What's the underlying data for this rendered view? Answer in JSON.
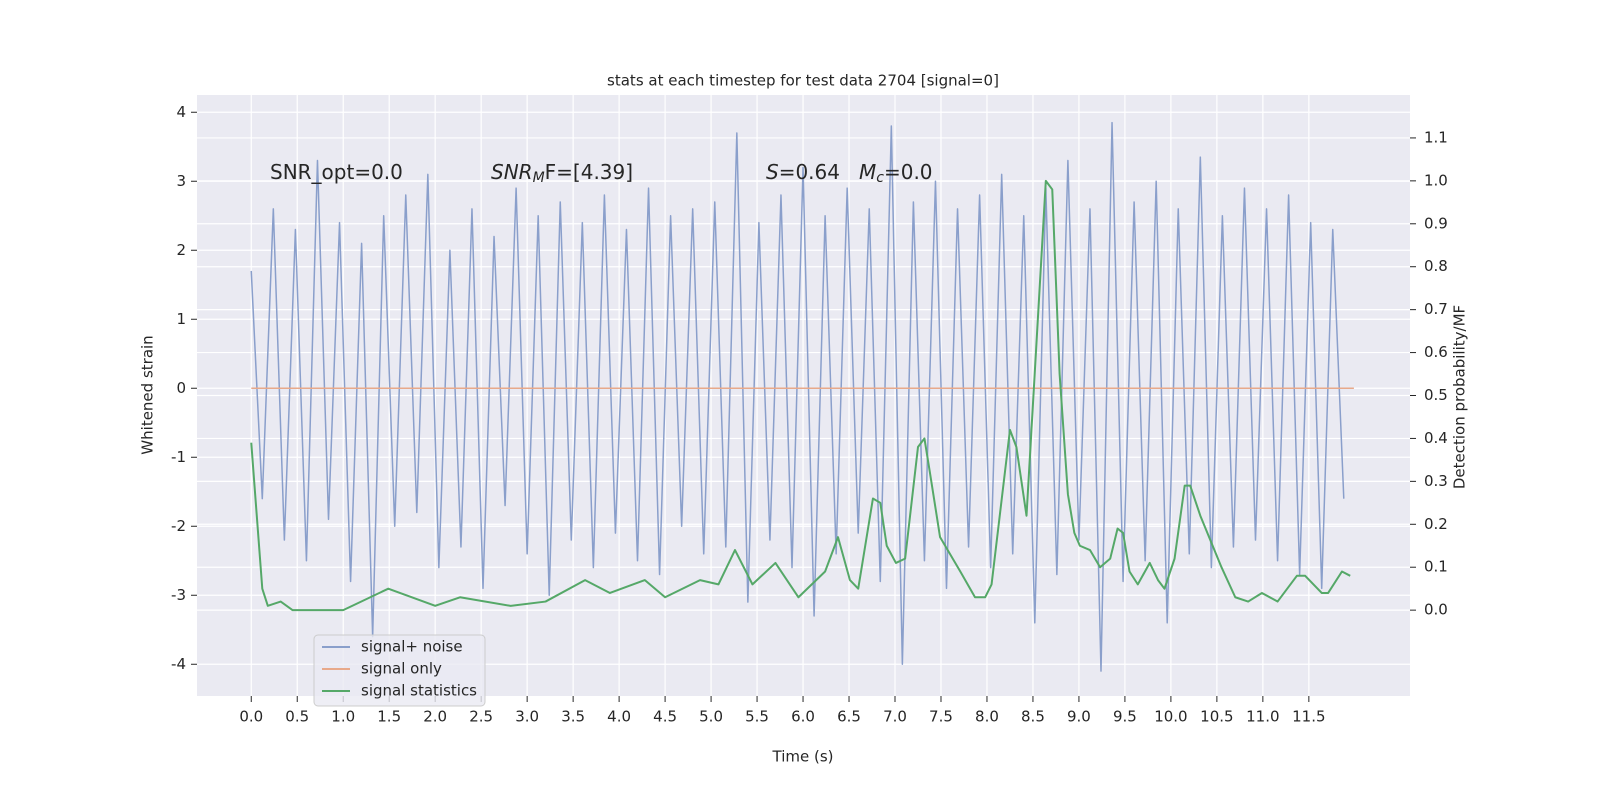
{
  "chart_data": {
    "type": "line",
    "title": "stats at each timestep for test data 2704 [signal=0]",
    "xlabel": "Time (s)",
    "ylabel": "Whitened strain",
    "y2label": "Detection probability/MF",
    "annotations": [
      [
        "SNR_opt=0.0"
      ],
      [
        "SNR",
        "M",
        "F=[4.39]"
      ],
      [
        "S",
        "=0.64"
      ],
      [
        "M",
        "c",
        "=0.0"
      ]
    ],
    "xlim": [
      -0.59,
      12.6
    ],
    "ylim": [
      -4.46,
      4.25
    ],
    "y2lim": [
      -0.2,
      1.2
    ],
    "xticks": [
      {
        "value": 0,
        "label": "0.0"
      },
      {
        "value": 0.5,
        "label": "0.5"
      },
      {
        "value": 1,
        "label": "1.0"
      },
      {
        "value": 1.5,
        "label": "1.5"
      },
      {
        "value": 2,
        "label": "2.0"
      },
      {
        "value": 2.5,
        "label": "2.5"
      },
      {
        "value": 3,
        "label": "3.0"
      },
      {
        "value": 3.5,
        "label": "3.5"
      },
      {
        "value": 4,
        "label": "4.0"
      },
      {
        "value": 4.5,
        "label": "4.5"
      },
      {
        "value": 5,
        "label": "5.0"
      },
      {
        "value": 5.5,
        "label": "5.5"
      },
      {
        "value": 6,
        "label": "6.0"
      },
      {
        "value": 6.5,
        "label": "6.5"
      },
      {
        "value": 7,
        "label": "7.0"
      },
      {
        "value": 7.5,
        "label": "7.5"
      },
      {
        "value": 8,
        "label": "8.0"
      },
      {
        "value": 8.5,
        "label": "8.5"
      },
      {
        "value": 9,
        "label": "9.0"
      },
      {
        "value": 9.5,
        "label": "9.5"
      },
      {
        "value": 10,
        "label": "10.0"
      },
      {
        "value": 10.5,
        "label": "10.5"
      },
      {
        "value": 11,
        "label": "11.0"
      },
      {
        "value": 11.5,
        "label": "11.5"
      }
    ],
    "yticks": [
      -4,
      -3,
      -2,
      -1,
      0,
      1,
      2,
      3,
      4
    ],
    "y2ticks": [
      {
        "value": 0,
        "label": "0.0"
      },
      {
        "value": 0.1,
        "label": "0.1"
      },
      {
        "value": 0.2,
        "label": "0.2"
      },
      {
        "value": 0.3,
        "label": "0.3"
      },
      {
        "value": 0.4,
        "label": "0.4"
      },
      {
        "value": 0.5,
        "label": "0.5"
      },
      {
        "value": 0.6,
        "label": "0.6"
      },
      {
        "value": 0.7,
        "label": "0.7"
      },
      {
        "value": 0.8,
        "label": "0.8"
      },
      {
        "value": 0.9,
        "label": "0.9"
      },
      {
        "value": 1,
        "label": "1.0"
      },
      {
        "value": 1.1,
        "label": "1.1"
      }
    ],
    "grid": true,
    "series": [
      {
        "name": "signal+ noise",
        "color": "#8a9fcb",
        "x": [
          0,
          0.12,
          0.24,
          0.36,
          0.48,
          0.6,
          0.72,
          0.84,
          0.96,
          1.08,
          1.2,
          1.32,
          1.44,
          1.56,
          1.68,
          1.8,
          1.92,
          2.04,
          2.16,
          2.28,
          2.4,
          2.52,
          2.64,
          2.76,
          2.88,
          3,
          3.12,
          3.24,
          3.36,
          3.48,
          3.6,
          3.72,
          3.84,
          3.96,
          4.08,
          4.2,
          4.32,
          4.44,
          4.56,
          4.68,
          4.8,
          4.92,
          5.04,
          5.16,
          5.28,
          5.4,
          5.52,
          5.64,
          5.76,
          5.88,
          6,
          6.12,
          6.24,
          6.36,
          6.48,
          6.6,
          6.72,
          6.84,
          6.96,
          7.08,
          7.2,
          7.32,
          7.44,
          7.56,
          7.68,
          7.8,
          7.92,
          8.04,
          8.16,
          8.28,
          8.4,
          8.52,
          8.64,
          8.76,
          8.88,
          9,
          9.12,
          9.24,
          9.36,
          9.48,
          9.6,
          9.72,
          9.84,
          9.96,
          10.08,
          10.2,
          10.32,
          10.44,
          10.56,
          10.68,
          10.8,
          10.92,
          11.04,
          11.16,
          11.28,
          11.4,
          11.52,
          11.64,
          11.76,
          11.88
        ],
        "values": [
          1.7,
          -1.6,
          2.6,
          -2.2,
          2.3,
          -2.5,
          3.3,
          -1.9,
          2.4,
          -2.8,
          2.1,
          -3.6,
          2.5,
          -2.0,
          2.8,
          -1.8,
          3.1,
          -2.6,
          2.0,
          -2.3,
          2.6,
          -2.9,
          2.2,
          -1.7,
          2.9,
          -2.4,
          2.5,
          -3.0,
          2.7,
          -2.2,
          2.4,
          -2.6,
          2.8,
          -2.1,
          2.3,
          -2.5,
          2.9,
          -2.7,
          2.5,
          -2.0,
          2.6,
          -2.4,
          2.7,
          -2.3,
          3.7,
          -3.1,
          2.4,
          -2.2,
          2.8,
          -2.6,
          3.2,
          -3.3,
          2.5,
          -2.4,
          2.9,
          -2.1,
          2.6,
          -2.8,
          3.8,
          -4.0,
          2.7,
          -2.5,
          3.0,
          -2.9,
          2.6,
          -2.3,
          2.8,
          -2.6,
          3.1,
          -2.4,
          2.5,
          -3.4,
          2.9,
          -2.7,
          3.3,
          -2.2,
          2.6,
          -4.1,
          3.85,
          -2.8,
          2.7,
          -2.5,
          3.0,
          -3.4,
          2.6,
          -2.4,
          3.35,
          -2.6,
          2.5,
          -2.3,
          2.9,
          -2.2,
          2.6,
          -2.5,
          2.8,
          -2.7,
          2.4,
          -2.9,
          2.3,
          -1.6
        ]
      },
      {
        "name": "signal only",
        "color": "#e8a98a",
        "x": [
          0,
          11.99
        ],
        "values": [
          0,
          0
        ]
      },
      {
        "name": "signal statistics",
        "color": "#55a868",
        "axis": "y2",
        "x": [
          0,
          0.12,
          0.18,
          0.32,
          0.45,
          1.0,
          1.49,
          2.0,
          2.27,
          2.82,
          3.2,
          3.63,
          3.9,
          4.28,
          4.5,
          4.88,
          5.08,
          5.26,
          5.45,
          5.7,
          5.95,
          6.24,
          6.38,
          6.51,
          6.6,
          6.76,
          6.84,
          6.91,
          7.01,
          7.11,
          7.25,
          7.32,
          7.38,
          7.49,
          7.71,
          7.87,
          7.98,
          8.05,
          8.25,
          8.32,
          8.43,
          8.64,
          8.71,
          8.79,
          8.88,
          8.95,
          9.01,
          9.12,
          9.23,
          9.34,
          9.42,
          9.48,
          9.55,
          9.64,
          9.77,
          9.86,
          9.93,
          10.04,
          10.15,
          10.21,
          10.32,
          10.55,
          10.7,
          10.84,
          10.99,
          11.16,
          11.37,
          11.46,
          11.64,
          11.71,
          11.86,
          11.95
        ],
        "values": [
          0.39,
          0.05,
          0.01,
          0.02,
          0.0,
          0.0,
          0.05,
          0.01,
          0.03,
          0.01,
          0.02,
          0.07,
          0.04,
          0.07,
          0.03,
          0.07,
          0.06,
          0.14,
          0.06,
          0.11,
          0.03,
          0.09,
          0.17,
          0.07,
          0.05,
          0.26,
          0.25,
          0.15,
          0.11,
          0.12,
          0.38,
          0.4,
          0.32,
          0.17,
          0.09,
          0.03,
          0.03,
          0.06,
          0.42,
          0.38,
          0.22,
          1.0,
          0.98,
          0.55,
          0.27,
          0.18,
          0.15,
          0.14,
          0.1,
          0.12,
          0.19,
          0.18,
          0.09,
          0.06,
          0.11,
          0.07,
          0.05,
          0.12,
          0.29,
          0.29,
          0.22,
          0.1,
          0.03,
          0.02,
          0.04,
          0.02,
          0.08,
          0.08,
          0.04,
          0.04,
          0.09,
          0.08
        ]
      }
    ]
  }
}
